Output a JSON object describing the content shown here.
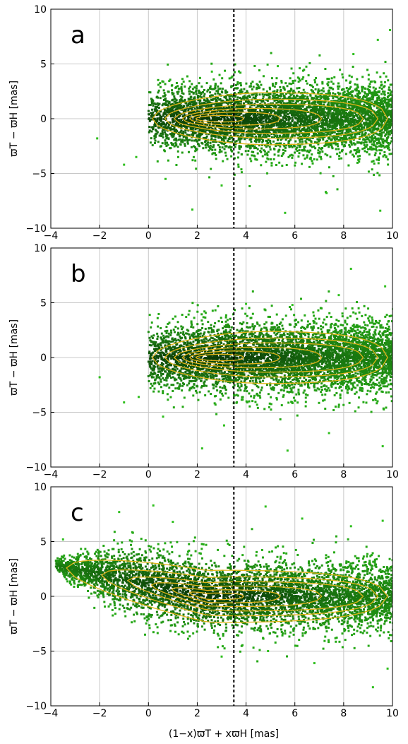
{
  "figure": {
    "xlabel": "(1−x)ϖT + xϖH [mas]",
    "ylabel": "ϖT − ϖH [mas]",
    "colors": {
      "scatter": "#2fbf1e",
      "density_low": "#25a916",
      "density_high": "#0b3a08",
      "contour": "#e0b318",
      "grid": "#c8c8c8",
      "dashed_line": "#000000"
    }
  },
  "chart_data": [
    {
      "type": "scatter",
      "panel_label": "a",
      "xlabel": "",
      "ylabel": "ϖT − ϖH [mas]",
      "xlim": [
        -4,
        10
      ],
      "ylim": [
        -10,
        10
      ],
      "xticks": [
        -4,
        -2,
        0,
        2,
        4,
        6,
        8,
        10
      ],
      "yticks": [
        -10,
        -5,
        0,
        5,
        10
      ],
      "grid": true,
      "vline_x": 3.5,
      "density": {
        "x_start": 0.0,
        "x_end": 10.0,
        "center_y": 0.0,
        "half_width_start": 3.3,
        "half_width_end": 3.8,
        "slope": 0.0
      },
      "outliers": [
        [
          -2.1,
          -1.8
        ],
        [
          -1.0,
          -4.2
        ],
        [
          -0.5,
          -3.5
        ],
        [
          0.7,
          -5.5
        ],
        [
          1.8,
          -8.3
        ],
        [
          3.0,
          -6.1
        ],
        [
          5.6,
          -8.6
        ],
        [
          7.3,
          -6.8
        ],
        [
          9.5,
          -8.4
        ],
        [
          9.9,
          8.1
        ],
        [
          9.4,
          7.2
        ],
        [
          8.4,
          5.9
        ],
        [
          5.3,
          4.8
        ],
        [
          2.6,
          4.3
        ]
      ],
      "contour_peak_x": 2.4,
      "contour_levels": [
        {
          "x_end": 9.8,
          "half_width": 2.4
        },
        {
          "x_end": 9.4,
          "half_width": 1.8
        },
        {
          "x_end": 8.8,
          "half_width": 1.35
        },
        {
          "x_end": 7.1,
          "half_width": 0.95
        },
        {
          "x_end": 5.4,
          "half_width": 0.6
        },
        {
          "x_end": 3.9,
          "half_width": 0.3
        }
      ]
    },
    {
      "type": "scatter",
      "panel_label": "b",
      "xlabel": "",
      "ylabel": "ϖT − ϖH [mas]",
      "xlim": [
        -4,
        10
      ],
      "ylim": [
        -10,
        10
      ],
      "xticks": [
        -4,
        -2,
        0,
        2,
        4,
        6,
        8,
        10
      ],
      "yticks": [
        -10,
        -5,
        0,
        5,
        10
      ],
      "grid": true,
      "vline_x": 3.5,
      "density": {
        "x_start": 0.0,
        "x_end": 10.0,
        "center_y": 0.0,
        "half_width_start": 3.3,
        "half_width_end": 3.8,
        "slope": 0.0
      },
      "outliers": [
        [
          -2.0,
          -1.8
        ],
        [
          -1.0,
          -4.1
        ],
        [
          -0.4,
          -3.6
        ],
        [
          0.6,
          -5.4
        ],
        [
          2.2,
          -8.3
        ],
        [
          3.1,
          -6.2
        ],
        [
          5.7,
          -8.5
        ],
        [
          7.4,
          -6.9
        ],
        [
          9.6,
          -8.1
        ],
        [
          8.3,
          8.1
        ],
        [
          9.7,
          6.5
        ],
        [
          7.8,
          5.7
        ],
        [
          5.9,
          4.8
        ],
        [
          4.0,
          4.9
        ]
      ],
      "contour_peak_x": 2.4,
      "contour_levels": [
        {
          "x_end": 9.8,
          "half_width": 2.4
        },
        {
          "x_end": 9.4,
          "half_width": 1.8
        },
        {
          "x_end": 8.8,
          "half_width": 1.35
        },
        {
          "x_end": 7.1,
          "half_width": 0.95
        },
        {
          "x_end": 5.4,
          "half_width": 0.6
        },
        {
          "x_end": 3.9,
          "half_width": 0.3
        }
      ]
    },
    {
      "type": "scatter",
      "panel_label": "c",
      "xlabel": "(1−x)ϖT + xϖH [mas]",
      "ylabel": "ϖT − ϖH [mas]",
      "xlim": [
        -4,
        10
      ],
      "ylim": [
        -10,
        10
      ],
      "xticks": [
        -4,
        -2,
        0,
        2,
        4,
        6,
        8,
        10
      ],
      "yticks": [
        -10,
        -5,
        0,
        5,
        10
      ],
      "grid": true,
      "vline_x": 3.5,
      "density": {
        "x_start": -3.8,
        "x_end": 10.0,
        "center_y": 0.0,
        "half_width_start": 0.8,
        "half_width_end": 3.8,
        "slope": -0.45
      },
      "outliers": [
        [
          -3.5,
          5.2
        ],
        [
          -1.2,
          7.7
        ],
        [
          0.2,
          8.3
        ],
        [
          1.0,
          6.8
        ],
        [
          4.8,
          8.2
        ],
        [
          6.3,
          7.1
        ],
        [
          8.3,
          6.4
        ],
        [
          9.6,
          6.9
        ],
        [
          9.8,
          -6.6
        ],
        [
          9.2,
          -8.3
        ],
        [
          6.8,
          -6.1
        ],
        [
          4.9,
          -5.0
        ],
        [
          3.0,
          -5.5
        ]
      ],
      "contour_peak_x": 2.4,
      "contour_levels": [
        {
          "x_end": 9.8,
          "half_width": 2.4
        },
        {
          "x_end": 9.4,
          "half_width": 1.8
        },
        {
          "x_end": 8.8,
          "half_width": 1.35
        },
        {
          "x_end": 7.1,
          "half_width": 0.95
        },
        {
          "x_end": 5.4,
          "half_width": 0.6
        },
        {
          "x_end": 3.9,
          "half_width": 0.3
        }
      ]
    }
  ]
}
